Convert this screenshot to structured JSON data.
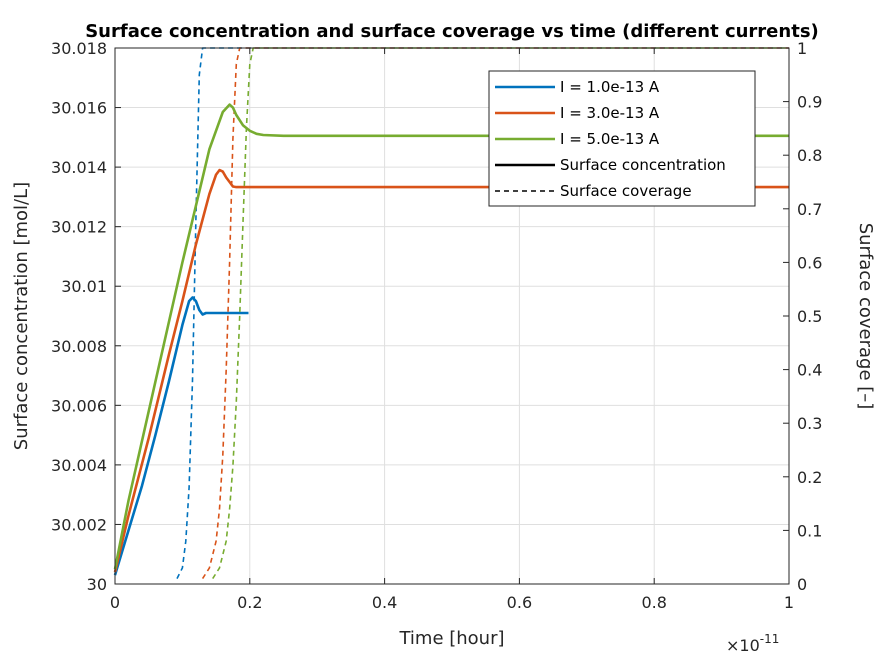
{
  "chart_data": {
    "type": "line",
    "title": "Surface concentration and surface coverage vs time (different currents)",
    "xlabel": "Time [hour]",
    "ylabel_left": "Surface concentration [mol/L]",
    "ylabel_right": "Surface coverage [–]",
    "x_exponent_base": "×10",
    "x_exponent_power": "-11",
    "xlim": [
      0,
      1
    ],
    "ylim_left": [
      30,
      30.018
    ],
    "ylim_right": [
      0,
      1
    ],
    "x_ticks": [
      0,
      0.2,
      0.4,
      0.6,
      0.8,
      1
    ],
    "x_tick_labels": [
      "0",
      "0.2",
      "0.4",
      "0.6",
      "0.8",
      "1"
    ],
    "y_left_ticks": [
      30,
      30.002,
      30.004,
      30.006,
      30.008,
      30.01,
      30.012,
      30.014,
      30.016,
      30.018
    ],
    "y_left_tick_labels": [
      "30",
      "30.002",
      "30.004",
      "30.006",
      "30.008",
      "30.01",
      "30.012",
      "30.014",
      "30.016",
      "30.018"
    ],
    "y_right_ticks": [
      0,
      0.1,
      0.2,
      0.3,
      0.4,
      0.5,
      0.6,
      0.7,
      0.8,
      0.9,
      1
    ],
    "y_right_tick_labels": [
      "0",
      "0.1",
      "0.2",
      "0.3",
      "0.4",
      "0.5",
      "0.6",
      "0.7",
      "0.8",
      "0.9",
      "1"
    ],
    "grid": true,
    "legend_position": "top-right",
    "legend": [
      {
        "label": "I = 1.0e-13 A",
        "color": "#0072BD",
        "style": "solid"
      },
      {
        "label": "I = 3.0e-13 A",
        "color": "#D95319",
        "style": "solid"
      },
      {
        "label": "I = 5.0e-13 A",
        "color": "#77AC30",
        "style": "solid"
      },
      {
        "label": "Surface concentration",
        "color": "#000000",
        "style": "solid"
      },
      {
        "label": "Surface coverage",
        "color": "#000000",
        "style": "dashed"
      }
    ],
    "series": [
      {
        "name": "I = 1.0e-13 A",
        "kind": "concentration",
        "axis": "left",
        "color": "#0072BD",
        "dash": false,
        "x": [
          0,
          0.02,
          0.04,
          0.06,
          0.08,
          0.1,
          0.11,
          0.115,
          0.12,
          0.125,
          0.13,
          0.135,
          0.14,
          0.16,
          0.18,
          0.198
        ],
        "y": [
          30.0003,
          30.0018,
          30.0033,
          30.005,
          30.0068,
          30.0087,
          30.0095,
          30.00962,
          30.0095,
          30.0092,
          30.00905,
          30.0091,
          30.0091,
          30.0091,
          30.0091,
          30.0091
        ]
      },
      {
        "name": "I = 1.0e-13 A",
        "kind": "coverage",
        "axis": "right",
        "color": "#0072BD",
        "dash": true,
        "x": [
          0.092,
          0.1,
          0.105,
          0.11,
          0.115,
          0.12,
          0.125,
          0.13,
          1.0
        ],
        "y": [
          0.01,
          0.03,
          0.08,
          0.18,
          0.38,
          0.68,
          0.95,
          1.0,
          1.0
        ]
      },
      {
        "name": "I = 3.0e-13 A",
        "kind": "concentration",
        "axis": "left",
        "color": "#D95319",
        "dash": false,
        "x": [
          0,
          0.02,
          0.05,
          0.08,
          0.1,
          0.12,
          0.14,
          0.15,
          0.155,
          0.16,
          0.165,
          0.17,
          0.175,
          0.18,
          0.2,
          0.3,
          0.5,
          0.7,
          1.0
        ],
        "y": [
          30.0004,
          30.0023,
          30.0049,
          30.0077,
          30.0095,
          30.0114,
          30.0131,
          30.01375,
          30.0139,
          30.01385,
          30.01365,
          30.0135,
          30.01335,
          30.01333,
          30.01333,
          30.01333,
          30.01333,
          30.01333,
          30.01333
        ]
      },
      {
        "name": "I = 3.0e-13 A",
        "kind": "coverage",
        "axis": "right",
        "color": "#D95319",
        "dash": true,
        "x": [
          0.13,
          0.14,
          0.15,
          0.155,
          0.16,
          0.165,
          0.17,
          0.175,
          0.18,
          0.185,
          1.0
        ],
        "y": [
          0.01,
          0.03,
          0.08,
          0.14,
          0.24,
          0.4,
          0.6,
          0.83,
          0.97,
          1.0,
          1.0
        ]
      },
      {
        "name": "I = 5.0e-13 A",
        "kind": "concentration",
        "axis": "left",
        "color": "#77AC30",
        "dash": false,
        "x": [
          0,
          0.02,
          0.05,
          0.08,
          0.1,
          0.12,
          0.14,
          0.16,
          0.17,
          0.175,
          0.18,
          0.19,
          0.2,
          0.21,
          0.22,
          0.25,
          0.3,
          0.5,
          0.7,
          1.0
        ],
        "y": [
          30.0005,
          30.0028,
          30.0058,
          30.0088,
          30.0108,
          30.0127,
          30.0146,
          30.01585,
          30.0161,
          30.016,
          30.01575,
          30.0154,
          30.01522,
          30.01512,
          30.01508,
          30.01505,
          30.01505,
          30.01505,
          30.01505,
          30.01505
        ]
      },
      {
        "name": "I = 5.0e-13 A",
        "kind": "coverage",
        "axis": "right",
        "color": "#77AC30",
        "dash": true,
        "x": [
          0.145,
          0.155,
          0.165,
          0.17,
          0.175,
          0.18,
          0.185,
          0.19,
          0.195,
          0.2,
          0.205,
          1.0
        ],
        "y": [
          0.01,
          0.03,
          0.08,
          0.14,
          0.22,
          0.34,
          0.5,
          0.68,
          0.85,
          0.97,
          1.0,
          1.0
        ]
      }
    ]
  }
}
